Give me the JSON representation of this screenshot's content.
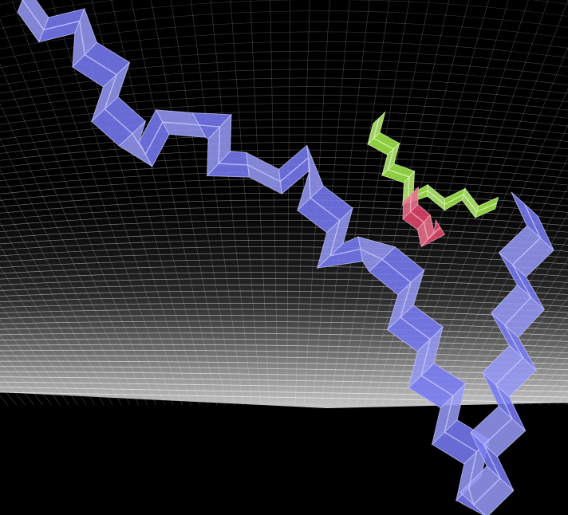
{
  "chart_data": {
    "type": "line",
    "title": "",
    "xlabel": "",
    "ylabel": "",
    "grid": true,
    "projection": "3d-perspective",
    "background": "#000000",
    "grid_color": "#ffffff",
    "series": [
      {
        "color": "#6a6ef0",
        "points": [
          [
            0,
            100
          ],
          [
            1,
            92
          ],
          [
            2,
            96
          ],
          [
            3,
            84
          ],
          [
            4,
            88
          ],
          [
            5,
            70
          ],
          [
            6,
            74
          ],
          [
            7,
            58
          ],
          [
            8,
            76
          ],
          [
            9,
            66
          ],
          [
            10,
            70
          ],
          [
            11,
            60
          ],
          [
            12,
            64
          ],
          [
            13,
            52
          ],
          [
            14,
            58
          ],
          [
            15,
            48
          ],
          [
            16,
            52
          ],
          [
            17,
            40
          ],
          [
            18,
            44
          ],
          [
            19,
            36
          ],
          [
            20,
            38
          ],
          [
            21,
            26
          ],
          [
            22,
            20
          ],
          [
            23,
            30
          ],
          [
            24,
            16
          ],
          [
            25,
            24
          ],
          [
            26,
            10
          ],
          [
            27,
            14
          ],
          [
            28,
            4
          ],
          [
            29,
            12
          ],
          [
            30,
            0
          ],
          [
            31,
            30
          ],
          [
            32,
            18
          ],
          [
            33,
            50
          ],
          [
            34,
            42
          ],
          [
            35,
            70
          ],
          [
            36,
            62
          ],
          [
            37,
            86
          ],
          [
            38,
            80
          ]
        ]
      },
      {
        "color": "#99e63a",
        "points": [
          [
            0,
            100
          ],
          [
            1,
            86
          ],
          [
            2,
            72
          ],
          [
            3,
            60
          ],
          [
            4,
            50
          ],
          [
            5,
            54
          ],
          [
            6,
            46
          ],
          [
            7,
            52
          ],
          [
            8,
            44
          ],
          [
            9,
            48
          ],
          [
            10,
            50
          ]
        ]
      },
      {
        "color": "#e0355e",
        "points": [
          [
            2,
            70
          ],
          [
            3,
            56
          ],
          [
            4,
            46
          ],
          [
            5,
            40
          ],
          [
            6,
            46
          ]
        ]
      }
    ]
  }
}
